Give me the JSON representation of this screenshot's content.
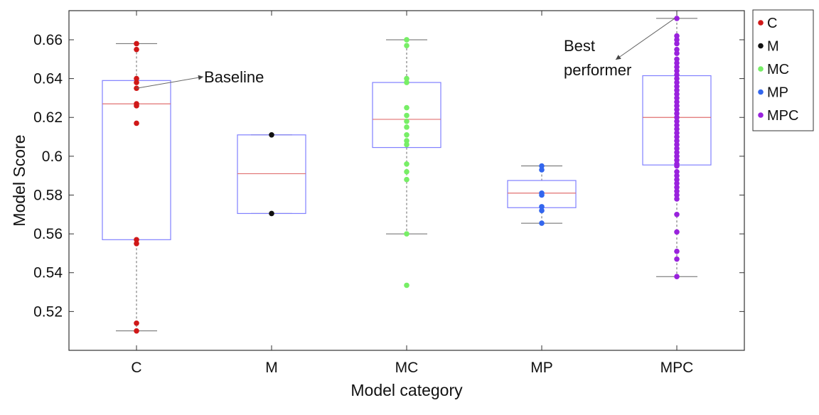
{
  "chart_data": {
    "type": "box",
    "xlabel": "Model category",
    "ylabel": "Model Score",
    "ylim": [
      0.5,
      0.675
    ],
    "yticks": [
      0.52,
      0.54,
      0.56,
      0.58,
      0.6,
      0.62,
      0.64,
      0.66
    ],
    "ytick_labels": [
      "0.52",
      "0.54",
      "0.56",
      "0.58",
      "0.6",
      "0.62",
      "0.64",
      "0.66"
    ],
    "categories": [
      "C",
      "M",
      "MC",
      "MP",
      "MPC"
    ],
    "legend_position": "outside-right-top",
    "colors": {
      "box": "#8080ff",
      "median": "#e07070",
      "whisker": "#666666",
      "frame": "#333333"
    },
    "series": [
      {
        "name": "C",
        "color": "#d01818",
        "box": {
          "q1": 0.557,
          "median": 0.627,
          "q3": 0.639,
          "whisker_low": 0.51,
          "whisker_high": 0.658
        },
        "points": [
          0.658,
          0.655,
          0.64,
          0.638,
          0.635,
          0.627,
          0.626,
          0.617,
          0.557,
          0.555,
          0.514,
          0.51
        ]
      },
      {
        "name": "M",
        "color": "#111111",
        "box": {
          "q1": 0.5705,
          "median": 0.591,
          "q3": 0.611,
          "whisker_low": 0.5705,
          "whisker_high": 0.611
        },
        "points": [
          0.611,
          0.5705
        ]
      },
      {
        "name": "MC",
        "color": "#77ee66",
        "box": {
          "q1": 0.6045,
          "median": 0.619,
          "q3": 0.638,
          "whisker_low": 0.56,
          "whisker_high": 0.66
        },
        "points": [
          0.66,
          0.657,
          0.64,
          0.638,
          0.625,
          0.621,
          0.618,
          0.615,
          0.611,
          0.608,
          0.606,
          0.596,
          0.592,
          0.588,
          0.56,
          0.5335
        ]
      },
      {
        "name": "MP",
        "color": "#3366ee",
        "box": {
          "q1": 0.5735,
          "median": 0.581,
          "q3": 0.5875,
          "whisker_low": 0.5655,
          "whisker_high": 0.595
        },
        "points": [
          0.595,
          0.593,
          0.581,
          0.58,
          0.574,
          0.572,
          0.5655
        ]
      },
      {
        "name": "MPC",
        "color": "#9922dd",
        "box": {
          "q1": 0.5955,
          "median": 0.62,
          "q3": 0.6415,
          "whisker_low": 0.538,
          "whisker_high": 0.671
        },
        "points": [
          0.671,
          0.662,
          0.66,
          0.658,
          0.655,
          0.653,
          0.65,
          0.648,
          0.646,
          0.644,
          0.642,
          0.64,
          0.638,
          0.636,
          0.634,
          0.632,
          0.63,
          0.628,
          0.626,
          0.624,
          0.622,
          0.62,
          0.618,
          0.616,
          0.614,
          0.612,
          0.61,
          0.608,
          0.606,
          0.604,
          0.602,
          0.6,
          0.598,
          0.596,
          0.595,
          0.592,
          0.59,
          0.588,
          0.586,
          0.584,
          0.582,
          0.58,
          0.578,
          0.57,
          0.561,
          0.551,
          0.547,
          0.538
        ]
      }
    ],
    "annotations": [
      {
        "name": "baseline",
        "lines": [
          "Baseline"
        ],
        "category": "C",
        "value": 0.635
      },
      {
        "name": "best-performer",
        "lines": [
          "Best",
          "performer"
        ],
        "category": "MPC",
        "value": 0.671
      }
    ]
  }
}
